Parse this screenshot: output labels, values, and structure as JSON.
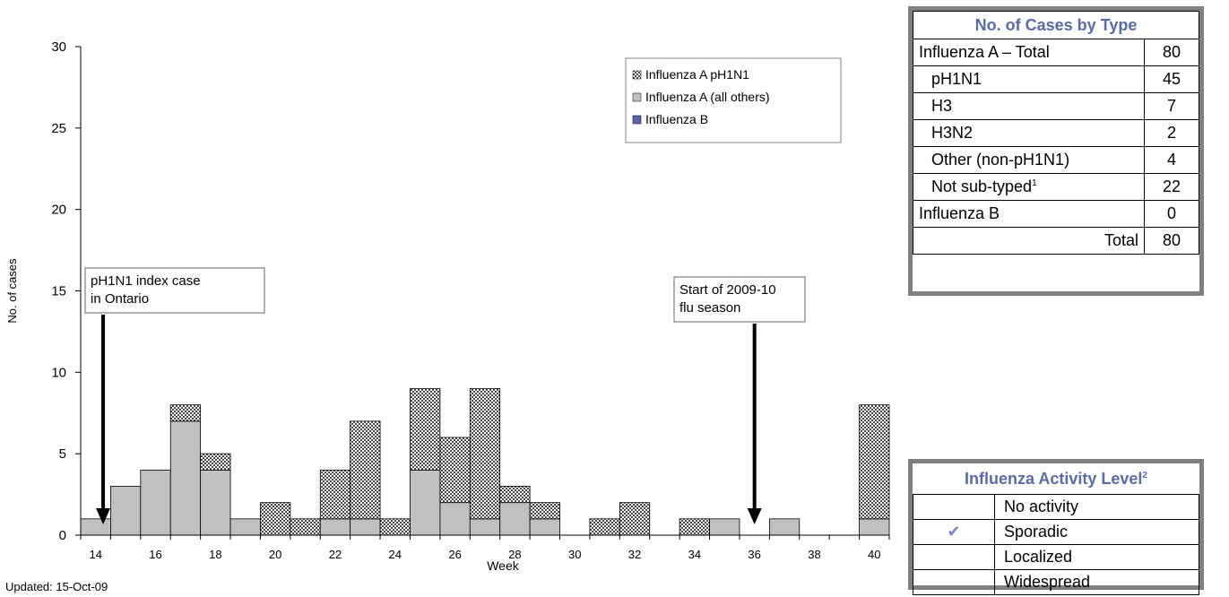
{
  "chart_data": {
    "type": "bar",
    "stacked": true,
    "xlabel": "Week",
    "ylabel": "No. of cases",
    "ylim": [
      0,
      30
    ],
    "yticks": [
      0,
      5,
      10,
      15,
      20,
      25,
      30
    ],
    "xticks": [
      "14",
      "16",
      "18",
      "20",
      "22",
      "24",
      "26",
      "28",
      "30",
      "32",
      "34",
      "36",
      "38",
      "40"
    ],
    "categories": [
      14,
      15,
      16,
      17,
      18,
      19,
      20,
      21,
      22,
      23,
      24,
      25,
      26,
      27,
      28,
      29,
      30,
      31,
      32,
      33,
      34,
      35,
      36,
      37,
      38,
      39,
      40
    ],
    "series": [
      {
        "name": "Influenza A (all others)",
        "color": "#c0c0c0",
        "values": [
          1,
          3,
          4,
          7,
          4,
          1,
          0,
          0,
          1,
          1,
          0,
          4,
          2,
          1,
          2,
          1,
          0,
          0,
          0,
          0,
          0,
          1,
          0,
          1,
          0,
          0,
          1
        ]
      },
      {
        "name": "Influenza A pH1N1",
        "color": "#808080",
        "values": [
          0,
          0,
          0,
          1,
          1,
          0,
          2,
          1,
          3,
          6,
          1,
          5,
          4,
          8,
          1,
          1,
          0,
          1,
          2,
          0,
          1,
          0,
          0,
          0,
          0,
          0,
          7
        ]
      },
      {
        "name": "Influenza B",
        "color": "#5b62a8",
        "values": [
          0,
          0,
          0,
          0,
          0,
          0,
          0,
          0,
          0,
          0,
          0,
          0,
          0,
          0,
          0,
          0,
          0,
          0,
          0,
          0,
          0,
          0,
          0,
          0,
          0,
          0,
          0
        ]
      }
    ],
    "legend_order": [
      "Influenza A pH1N1",
      "Influenza A (all others)",
      "Influenza B"
    ],
    "legend_position": "top-right",
    "annotations": [
      {
        "lines": [
          "pH1N1 index case",
          "in Ontario"
        ],
        "week": 14
      },
      {
        "lines": [
          "Start of 2009-10",
          "flu season"
        ],
        "week": 36
      }
    ]
  },
  "updated_label": "Updated: 15-Oct-09",
  "cases_table": {
    "title": "No. of Cases by Type",
    "rows": [
      {
        "label": "Influenza A – Total",
        "value": "80"
      },
      {
        "label": "pH1N1",
        "value": "45"
      },
      {
        "label": "H3",
        "value": "7"
      },
      {
        "label": "H3N2",
        "value": "2"
      },
      {
        "label": "Other (non-pH1N1)",
        "value": "4"
      },
      {
        "label": "Not sub-typed",
        "sup": "1",
        "value": "22"
      },
      {
        "label": "Influenza B",
        "value": "0"
      },
      {
        "label": "Total",
        "value": "80"
      }
    ]
  },
  "activity_table": {
    "title": "Influenza Activity Level",
    "title_sup": "2",
    "check_mark": "✔",
    "levels": [
      {
        "label": "No activity",
        "checked": false
      },
      {
        "label": "Sporadic",
        "checked": true
      },
      {
        "label": "Localized",
        "checked": false
      },
      {
        "label": "Widespread",
        "checked": false
      }
    ]
  }
}
